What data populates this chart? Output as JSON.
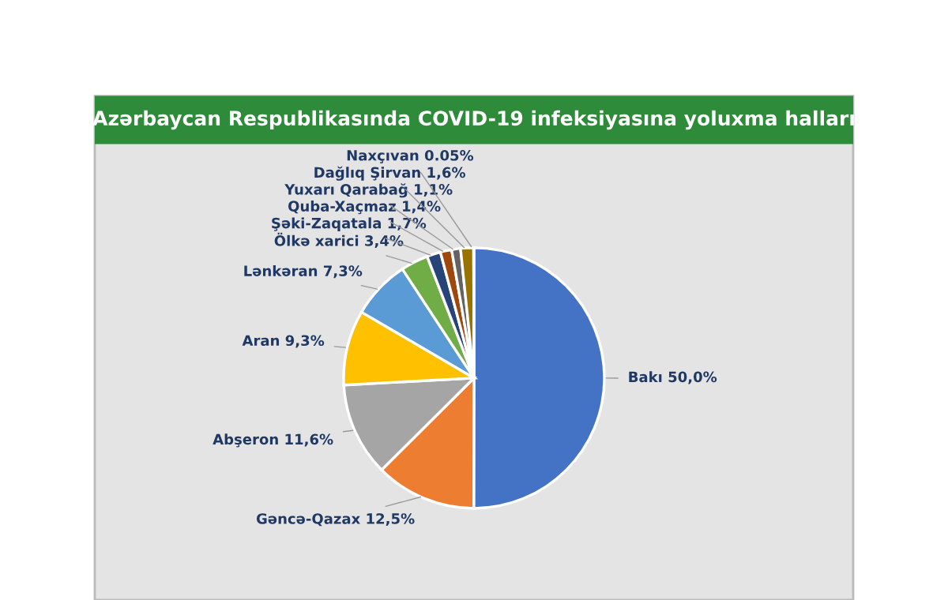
{
  "chart_data": {
    "type": "pie",
    "title": "Azərbaycan Respublikasında COVID-19 infeksiyasına yoluxma halları",
    "categories": [
      "Bakı",
      "Gəncə-Qazax",
      "Abşeron",
      "Aran",
      "Lənkəran",
      "Ölkə xarici",
      "Şəki-Zaqatala",
      "Quba-Xaçmaz",
      "Yuxarı Qarabağ",
      "Dağlıq Şirvan",
      "Naxçıvan"
    ],
    "values": [
      50.0,
      12.5,
      11.6,
      9.3,
      7.3,
      3.4,
      1.7,
      1.4,
      1.1,
      1.6,
      0.05
    ],
    "value_labels": [
      "50,0%",
      "12,5%",
      "11,6%",
      "9,3%",
      "7,3%",
      "3,4%",
      "1,7%",
      "1,4%",
      "1,1%",
      "1,6%",
      "0.05%"
    ],
    "colors": [
      "#4472c4",
      "#ed7d31",
      "#a5a5a5",
      "#ffc000",
      "#5b9bd5",
      "#70ad47",
      "#264478",
      "#9e480e",
      "#636363",
      "#997300",
      "#b8860b"
    ],
    "legend": false
  }
}
